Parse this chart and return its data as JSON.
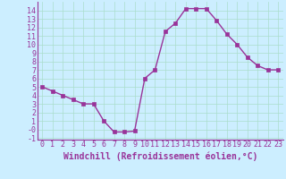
{
  "x": [
    0,
    1,
    2,
    3,
    4,
    5,
    6,
    7,
    8,
    9,
    10,
    11,
    12,
    13,
    14,
    15,
    16,
    17,
    18,
    19,
    20,
    21,
    22,
    23
  ],
  "y": [
    5,
    4.5,
    4,
    3.5,
    3,
    3,
    1,
    -0.3,
    -0.3,
    -0.2,
    6,
    7,
    11.5,
    12.5,
    14.2,
    14.2,
    14.2,
    12.8,
    11.2,
    10,
    8.5,
    7.5,
    7,
    7
  ],
  "line_color": "#993399",
  "marker": "s",
  "markersize": 2.5,
  "linewidth": 1.0,
  "bg_color": "#cceeff",
  "grid_color": "#aaddcc",
  "xlabel": "Windchill (Refroidissement éolien,°C)",
  "xlabel_fontsize": 7,
  "xlabel_color": "#993399",
  "tick_color": "#993399",
  "tick_fontsize": 6,
  "ylim": [
    -1.2,
    15.0
  ],
  "xlim": [
    -0.5,
    23.5
  ],
  "yticks": [
    14,
    13,
    12,
    11,
    10,
    9,
    8,
    7,
    6,
    5,
    4,
    3,
    2,
    1,
    0,
    -1
  ],
  "ytick_labels": [
    "14",
    "13",
    "12",
    "11",
    "10",
    "9",
    "8",
    "7",
    "6",
    "5",
    "4",
    "3",
    "2",
    "1",
    "-0",
    "-1"
  ],
  "xticks": [
    0,
    1,
    2,
    3,
    4,
    5,
    6,
    7,
    8,
    9,
    10,
    11,
    12,
    13,
    14,
    15,
    16,
    17,
    18,
    19,
    20,
    21,
    22,
    23
  ],
  "xtick_labels": [
    "0",
    "1",
    "2",
    "3",
    "4",
    "5",
    "6",
    "7",
    "8",
    "9",
    "10",
    "11",
    "12",
    "13",
    "14",
    "15",
    "16",
    "17",
    "18",
    "19",
    "20",
    "21",
    "22",
    "23"
  ],
  "spine_color": "#993399"
}
